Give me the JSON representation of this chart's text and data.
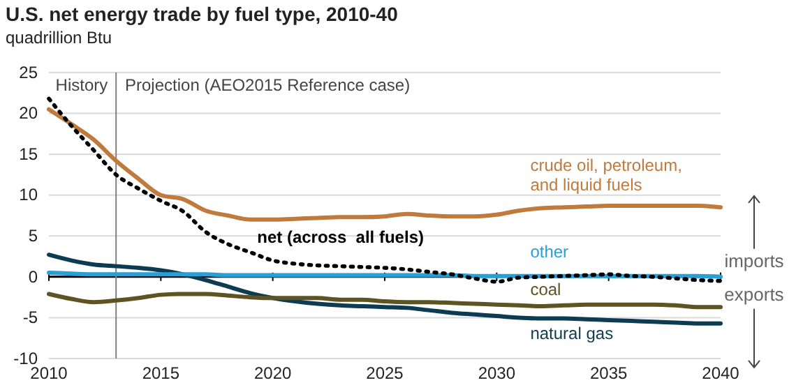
{
  "chart_data": {
    "type": "line",
    "title": "U.S. net energy trade by fuel type, 2010-40",
    "subtitle": "quadrillion Btu",
    "x": [
      2010,
      2011,
      2012,
      2013,
      2014,
      2015,
      2016,
      2017,
      2018,
      2019,
      2020,
      2021,
      2022,
      2023,
      2024,
      2025,
      2026,
      2027,
      2028,
      2029,
      2030,
      2031,
      2032,
      2033,
      2034,
      2035,
      2036,
      2037,
      2038,
      2039,
      2040
    ],
    "series": [
      {
        "name": "crude oil, petroleum, and liquid fuels",
        "color": "#c07a3e",
        "values": [
          20.5,
          18.7,
          16.8,
          14.2,
          12,
          10,
          9.5,
          8.1,
          7.5,
          7,
          7,
          7.1,
          7.2,
          7.3,
          7.3,
          7.4,
          7.7,
          7.5,
          7.4,
          7.4,
          7.6,
          8.1,
          8.4,
          8.5,
          8.6,
          8.7,
          8.7,
          8.7,
          8.7,
          8.7,
          8.5
        ]
      },
      {
        "name": "natural gas",
        "color": "#0d3b52",
        "values": [
          2.7,
          2,
          1.5,
          1.3,
          1.1,
          0.8,
          0.3,
          -0.4,
          -1.2,
          -2,
          -2.6,
          -3,
          -3.3,
          -3.5,
          -3.6,
          -3.7,
          -3.8,
          -4.1,
          -4.4,
          -4.6,
          -4.8,
          -5,
          -5.1,
          -5.1,
          -5.2,
          -5.3,
          -5.4,
          -5.5,
          -5.6,
          -5.7,
          -5.7
        ]
      },
      {
        "name": "coal",
        "color": "#5e5322",
        "values": [
          -2.1,
          -2.7,
          -3.1,
          -2.9,
          -2.6,
          -2.2,
          -2.1,
          -2.1,
          -2.3,
          -2.5,
          -2.6,
          -2.6,
          -2.6,
          -2.8,
          -2.8,
          -3,
          -3.1,
          -3.1,
          -3.2,
          -3.3,
          -3.4,
          -3.5,
          -3.6,
          -3.5,
          -3.4,
          -3.4,
          -3.4,
          -3.4,
          -3.5,
          -3.7,
          -3.7
        ]
      },
      {
        "name": "other",
        "color": "#2a9fd6",
        "values": [
          0.5,
          0.4,
          0.3,
          0.3,
          0.3,
          0.3,
          0.3,
          0.3,
          0.2,
          0.2,
          0.2,
          0.2,
          0.2,
          0.2,
          0.2,
          0.2,
          0.2,
          0.2,
          0.2,
          0.1,
          0.1,
          0.1,
          0.1,
          0.1,
          0.1,
          0.1,
          0.1,
          0.1,
          0.1,
          0.1,
          0
        ]
      },
      {
        "name": "net (across  all fuels)",
        "color": "#000000",
        "line_style": "dotted",
        "values": [
          21.8,
          18.5,
          15.5,
          12.5,
          10.8,
          9.3,
          8,
          5.5,
          4,
          3,
          2,
          1.6,
          1.4,
          1.3,
          1.2,
          1.1,
          0.9,
          0.6,
          0.3,
          -0.2,
          -0.6,
          -0.1,
          0,
          0.1,
          0.2,
          0.3,
          0.1,
          0,
          -0.2,
          -0.4,
          -0.5
        ]
      }
    ],
    "xlim": [
      2010,
      2040
    ],
    "xticks": [
      2010,
      2015,
      2020,
      2025,
      2030,
      2035,
      2040
    ],
    "ylim": [
      -10,
      25
    ],
    "yticks": [
      -10,
      -5,
      0,
      5,
      10,
      15,
      20,
      25
    ],
    "grid": "y",
    "ref_lines": [
      {
        "axis": "x",
        "value": 2013,
        "label": null,
        "color": "#808080"
      }
    ],
    "annotations": [
      "History",
      "Projection (AEO2015 Reference case)",
      "imports",
      "exports"
    ]
  }
}
